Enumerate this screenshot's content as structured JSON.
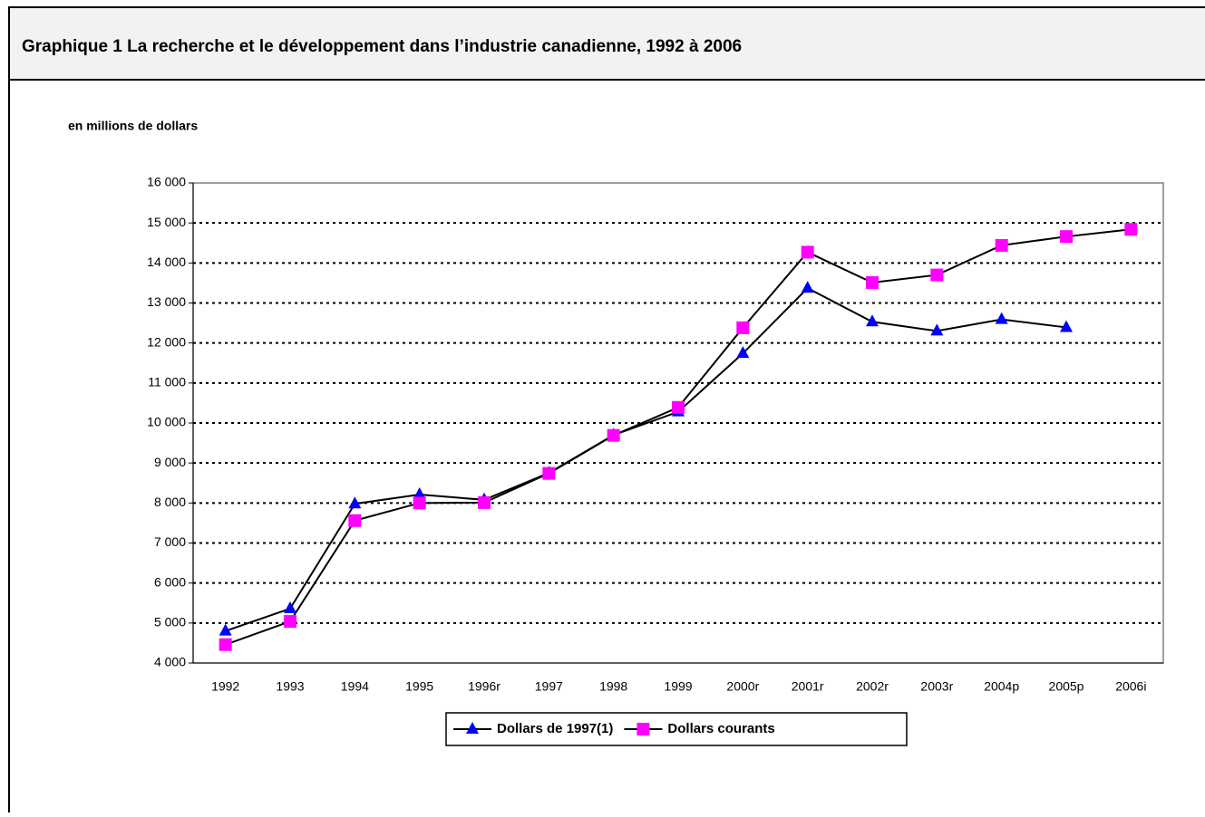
{
  "chart_data": {
    "type": "line",
    "title": "Graphique 1  La recherche et le développement dans l’industrie canadienne, 1992 à 2006",
    "y_label": "en millions de dollars",
    "categories": [
      "1992",
      "1993",
      "1994",
      "1995",
      "1996r",
      "1997",
      "1998",
      "1999",
      "2000r",
      "2001r",
      "2002r",
      "2003r",
      "2004p",
      "2005p",
      "2006i"
    ],
    "series": [
      {
        "name": "Dollars de 1997(1)",
        "color": "#0000ff",
        "marker": "triangle",
        "values": [
          4800,
          5360,
          7980,
          8210,
          8080,
          8750,
          9700,
          10280,
          11740,
          13370,
          12530,
          12300,
          12590,
          12390,
          null
        ]
      },
      {
        "name": "Dollars courants",
        "color": "#ff00ff",
        "marker": "square",
        "values": [
          4460,
          5040,
          7560,
          8000,
          8010,
          8740,
          9690,
          10390,
          12380,
          14270,
          13510,
          13700,
          14440,
          14660,
          14840
        ]
      }
    ],
    "ylim": [
      4000,
      16000
    ],
    "yticks": [
      {
        "value": 4000,
        "label": "4 000"
      },
      {
        "value": 5000,
        "label": "5 000"
      },
      {
        "value": 6000,
        "label": "6 000"
      },
      {
        "value": 7000,
        "label": "7 000"
      },
      {
        "value": 8000,
        "label": "8 000"
      },
      {
        "value": 9000,
        "label": "9 000"
      },
      {
        "value": 10000,
        "label": "10 000"
      },
      {
        "value": 11000,
        "label": "11 000"
      },
      {
        "value": 12000,
        "label": "12 000"
      },
      {
        "value": 13000,
        "label": "13 000"
      },
      {
        "value": 14000,
        "label": "14 000"
      },
      {
        "value": 15000,
        "label": "15 000"
      },
      {
        "value": 16000,
        "label": "16 000"
      }
    ],
    "grid": true,
    "legend": "bottom"
  }
}
